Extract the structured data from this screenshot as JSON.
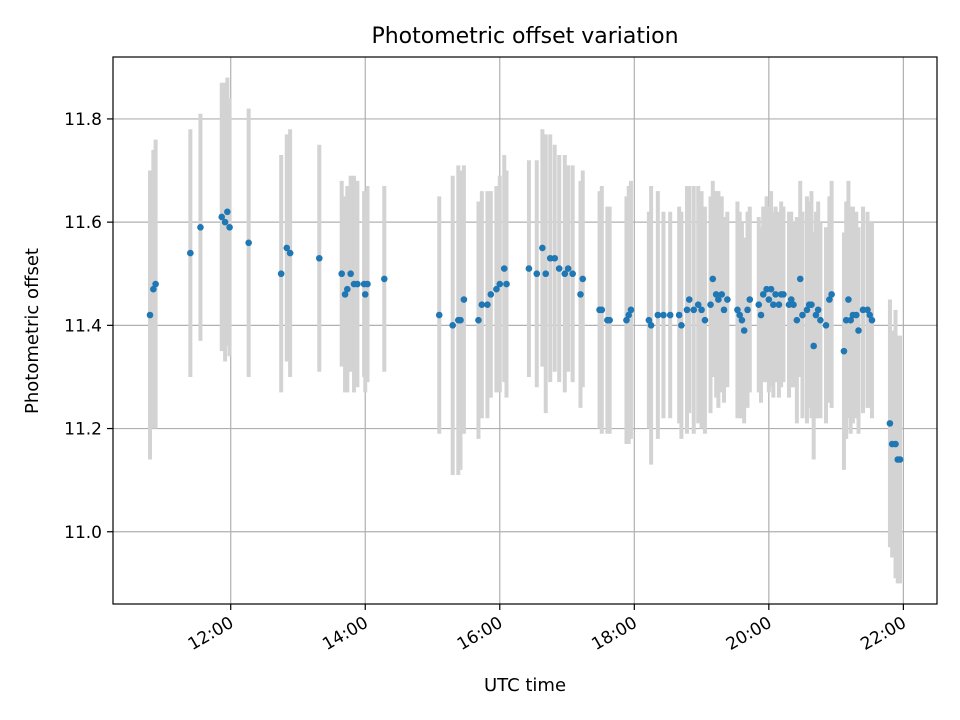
{
  "chart_data": {
    "type": "scatter",
    "title": "Photometric offset variation",
    "xlabel": "UTC time",
    "ylabel": "Photometric offset",
    "x_tick_labels": [
      "12:00",
      "14:00",
      "16:00",
      "18:00",
      "20:00",
      "22:00"
    ],
    "x_tick_values_hours": [
      12,
      14,
      16,
      18,
      20,
      22
    ],
    "y_tick_labels": [
      "11.0",
      "11.2",
      "11.4",
      "11.6",
      "11.8"
    ],
    "y_tick_values": [
      11.0,
      11.2,
      11.4,
      11.6,
      11.8
    ],
    "xlim_hours": [
      10.25,
      22.5
    ],
    "ylim": [
      10.86,
      11.92
    ],
    "grid": true,
    "colors": {
      "point": "#1f77b4",
      "errorbar": "#d3d3d3",
      "grid": "#b0b0b0",
      "axis": "#000000"
    },
    "series": [
      {
        "points": [
          {
            "x": "10:48",
            "y": 11.42,
            "err": 0.28
          },
          {
            "x": "10:51",
            "y": 11.47,
            "err": 0.27
          },
          {
            "x": "10:53",
            "y": 11.48,
            "err": 0.28
          },
          {
            "x": "11:24",
            "y": 11.54,
            "err": 0.24
          },
          {
            "x": "11:33",
            "y": 11.59,
            "err": 0.22
          },
          {
            "x": "11:52",
            "y": 11.61,
            "err": 0.26
          },
          {
            "x": "11:55",
            "y": 11.6,
            "err": 0.27
          },
          {
            "x": "11:57",
            "y": 11.62,
            "err": 0.26
          },
          {
            "x": "11:59",
            "y": 11.59,
            "err": 0.25
          },
          {
            "x": "12:16",
            "y": 11.56,
            "err": 0.26
          },
          {
            "x": "12:45",
            "y": 11.5,
            "err": 0.23
          },
          {
            "x": "12:50",
            "y": 11.55,
            "err": 0.22
          },
          {
            "x": "12:53",
            "y": 11.54,
            "err": 0.24
          },
          {
            "x": "13:19",
            "y": 11.53,
            "err": 0.22
          },
          {
            "x": "13:39",
            "y": 11.5,
            "err": 0.18
          },
          {
            "x": "13:42",
            "y": 11.46,
            "err": 0.19
          },
          {
            "x": "13:44",
            "y": 11.47,
            "err": 0.2
          },
          {
            "x": "13:47",
            "y": 11.5,
            "err": 0.19
          },
          {
            "x": "13:50",
            "y": 11.48,
            "err": 0.21
          },
          {
            "x": "13:53",
            "y": 11.48,
            "err": 0.2
          },
          {
            "x": "13:59",
            "y": 11.48,
            "err": 0.18
          },
          {
            "x": "14:00",
            "y": 11.46,
            "err": 0.19
          },
          {
            "x": "14:02",
            "y": 11.48,
            "err": 0.19
          },
          {
            "x": "14:17",
            "y": 11.49,
            "err": 0.18
          },
          {
            "x": "15:06",
            "y": 11.42,
            "err": 0.23
          },
          {
            "x": "15:18",
            "y": 11.4,
            "err": 0.29
          },
          {
            "x": "15:23",
            "y": 11.41,
            "err": 0.3
          },
          {
            "x": "15:25",
            "y": 11.41,
            "err": 0.29
          },
          {
            "x": "15:28",
            "y": 11.45,
            "err": 0.26
          },
          {
            "x": "15:41",
            "y": 11.41,
            "err": 0.23
          },
          {
            "x": "15:44",
            "y": 11.44,
            "err": 0.22
          },
          {
            "x": "15:49",
            "y": 11.44,
            "err": 0.22
          },
          {
            "x": "15:52",
            "y": 11.46,
            "err": 0.2
          },
          {
            "x": "15:57",
            "y": 11.47,
            "err": 0.2
          },
          {
            "x": "16:00",
            "y": 11.48,
            "err": 0.21
          },
          {
            "x": "16:04",
            "y": 11.51,
            "err": 0.22
          },
          {
            "x": "16:06",
            "y": 11.48,
            "err": 0.22
          },
          {
            "x": "16:26",
            "y": 11.51,
            "err": 0.21
          },
          {
            "x": "16:33",
            "y": 11.5,
            "err": 0.22
          },
          {
            "x": "16:38",
            "y": 11.55,
            "err": 0.23
          },
          {
            "x": "16:41",
            "y": 11.5,
            "err": 0.27
          },
          {
            "x": "16:45",
            "y": 11.53,
            "err": 0.24
          },
          {
            "x": "16:49",
            "y": 11.53,
            "err": 0.22
          },
          {
            "x": "16:53",
            "y": 11.51,
            "err": 0.22
          },
          {
            "x": "16:58",
            "y": 11.5,
            "err": 0.23
          },
          {
            "x": "17:01",
            "y": 11.51,
            "err": 0.2
          },
          {
            "x": "17:05",
            "y": 11.5,
            "err": 0.21
          },
          {
            "x": "17:12",
            "y": 11.46,
            "err": 0.22
          },
          {
            "x": "17:14",
            "y": 11.49,
            "err": 0.21
          },
          {
            "x": "17:29",
            "y": 11.43,
            "err": 0.23
          },
          {
            "x": "17:31",
            "y": 11.43,
            "err": 0.24
          },
          {
            "x": "17:36",
            "y": 11.41,
            "err": 0.22
          },
          {
            "x": "17:38",
            "y": 11.41,
            "err": 0.22
          },
          {
            "x": "17:53",
            "y": 11.41,
            "err": 0.24
          },
          {
            "x": "17:55",
            "y": 11.42,
            "err": 0.25
          },
          {
            "x": "17:57",
            "y": 11.43,
            "err": 0.25
          },
          {
            "x": "18:13",
            "y": 11.41,
            "err": 0.21
          },
          {
            "x": "18:15",
            "y": 11.4,
            "err": 0.27
          },
          {
            "x": "18:21",
            "y": 11.42,
            "err": 0.24
          },
          {
            "x": "18:26",
            "y": 11.42,
            "err": 0.2
          },
          {
            "x": "18:32",
            "y": 11.42,
            "err": 0.2
          },
          {
            "x": "18:40",
            "y": 11.42,
            "err": 0.21
          },
          {
            "x": "18:42",
            "y": 11.4,
            "err": 0.22
          },
          {
            "x": "18:47",
            "y": 11.43,
            "err": 0.24
          },
          {
            "x": "18:49",
            "y": 11.45,
            "err": 0.22
          },
          {
            "x": "18:53",
            "y": 11.43,
            "err": 0.24
          },
          {
            "x": "18:57",
            "y": 11.44,
            "err": 0.23
          },
          {
            "x": "19:00",
            "y": 11.43,
            "err": 0.23
          },
          {
            "x": "19:03",
            "y": 11.41,
            "err": 0.22
          },
          {
            "x": "19:08",
            "y": 11.44,
            "err": 0.21
          },
          {
            "x": "19:10",
            "y": 11.49,
            "err": 0.19
          },
          {
            "x": "19:13",
            "y": 11.46,
            "err": 0.2
          },
          {
            "x": "19:15",
            "y": 11.45,
            "err": 0.21
          },
          {
            "x": "19:18",
            "y": 11.46,
            "err": 0.19
          },
          {
            "x": "19:20",
            "y": 11.43,
            "err": 0.18
          },
          {
            "x": "19:23",
            "y": 11.45,
            "err": 0.17
          },
          {
            "x": "19:32",
            "y": 11.43,
            "err": 0.21
          },
          {
            "x": "19:34",
            "y": 11.42,
            "err": 0.2
          },
          {
            "x": "19:36",
            "y": 11.41,
            "err": 0.19
          },
          {
            "x": "19:38",
            "y": 11.39,
            "err": 0.18
          },
          {
            "x": "19:41",
            "y": 11.43,
            "err": 0.19
          },
          {
            "x": "19:43",
            "y": 11.45,
            "err": 0.18
          },
          {
            "x": "19:51",
            "y": 11.44,
            "err": 0.17
          },
          {
            "x": "19:53",
            "y": 11.42,
            "err": 0.17
          },
          {
            "x": "19:55",
            "y": 11.46,
            "err": 0.17
          },
          {
            "x": "19:58",
            "y": 11.47,
            "err": 0.18
          },
          {
            "x": "20:00",
            "y": 11.45,
            "err": 0.18
          },
          {
            "x": "20:02",
            "y": 11.47,
            "err": 0.19
          },
          {
            "x": "20:04",
            "y": 11.44,
            "err": 0.18
          },
          {
            "x": "20:06",
            "y": 11.46,
            "err": 0.17
          },
          {
            "x": "20:09",
            "y": 11.44,
            "err": 0.18
          },
          {
            "x": "20:11",
            "y": 11.46,
            "err": 0.18
          },
          {
            "x": "20:13",
            "y": 11.46,
            "err": 0.17
          },
          {
            "x": "20:18",
            "y": 11.44,
            "err": 0.18
          },
          {
            "x": "20:20",
            "y": 11.45,
            "err": 0.17
          },
          {
            "x": "20:22",
            "y": 11.44,
            "err": 0.16
          },
          {
            "x": "20:25",
            "y": 11.41,
            "err": 0.2
          },
          {
            "x": "20:28",
            "y": 11.49,
            "err": 0.19
          },
          {
            "x": "20:30",
            "y": 11.42,
            "err": 0.2
          },
          {
            "x": "20:34",
            "y": 11.43,
            "err": 0.22
          },
          {
            "x": "20:36",
            "y": 11.44,
            "err": 0.2
          },
          {
            "x": "20:38",
            "y": 11.44,
            "err": 0.22
          },
          {
            "x": "20:40",
            "y": 11.36,
            "err": 0.22
          },
          {
            "x": "20:42",
            "y": 11.42,
            "err": 0.2
          },
          {
            "x": "20:44",
            "y": 11.43,
            "err": 0.21
          },
          {
            "x": "20:46",
            "y": 11.41,
            "err": 0.19
          },
          {
            "x": "20:51",
            "y": 11.4,
            "err": 0.19
          },
          {
            "x": "20:54",
            "y": 11.45,
            "err": 0.2
          },
          {
            "x": "20:56",
            "y": 11.46,
            "err": 0.22
          },
          {
            "x": "21:07",
            "y": 11.35,
            "err": 0.23
          },
          {
            "x": "21:09",
            "y": 11.41,
            "err": 0.23
          },
          {
            "x": "21:11",
            "y": 11.45,
            "err": 0.23
          },
          {
            "x": "21:13",
            "y": 11.41,
            "err": 0.22
          },
          {
            "x": "21:15",
            "y": 11.42,
            "err": 0.21
          },
          {
            "x": "21:18",
            "y": 11.42,
            "err": 0.2
          },
          {
            "x": "21:20",
            "y": 11.39,
            "err": 0.2
          },
          {
            "x": "21:24",
            "y": 11.43,
            "err": 0.2
          },
          {
            "x": "21:28",
            "y": 11.43,
            "err": 0.19
          },
          {
            "x": "21:30",
            "y": 11.42,
            "err": 0.18
          },
          {
            "x": "21:32",
            "y": 11.41,
            "err": 0.19
          },
          {
            "x": "21:48",
            "y": 11.21,
            "err": 0.24
          },
          {
            "x": "21:50",
            "y": 11.17,
            "err": 0.22
          },
          {
            "x": "21:53",
            "y": 11.17,
            "err": 0.26
          },
          {
            "x": "21:55",
            "y": 11.14,
            "err": 0.24
          },
          {
            "x": "21:57",
            "y": 11.14,
            "err": 0.24
          }
        ]
      }
    ]
  }
}
